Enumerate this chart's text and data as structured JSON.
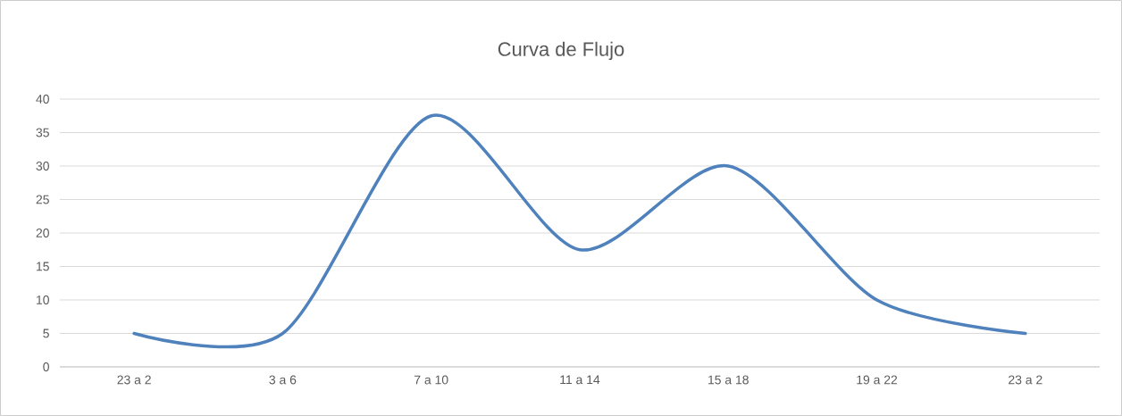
{
  "chart_data": {
    "type": "line",
    "title": "Curva de Flujo",
    "categories": [
      "23 a 2",
      "3 a 6",
      "7 a 10",
      "11 a 14",
      "15 a 18",
      "19 a 22",
      "23 a 2"
    ],
    "series": [
      {
        "color": "#4f81bd",
        "values": [
          5,
          5,
          37.5,
          17.5,
          30,
          10,
          5
        ]
      }
    ],
    "ylim": [
      0,
      40
    ],
    "yticks": [
      0,
      5,
      10,
      15,
      20,
      25,
      30,
      35,
      40
    ],
    "grid": "y",
    "marker": "none",
    "line_style": "solid"
  }
}
